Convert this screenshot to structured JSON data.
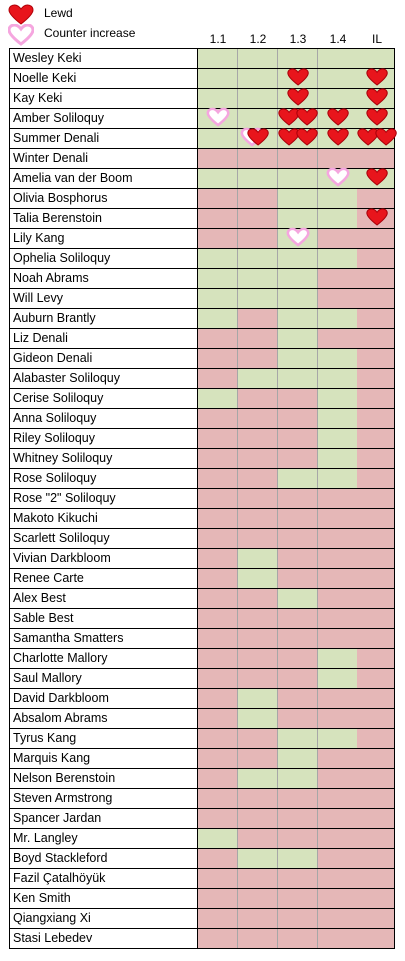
{
  "legend": {
    "lewd_label": "Lewd",
    "counter_label": "Counter increase",
    "lewd_color": "#e8151c",
    "counter_color": "#f5a6df"
  },
  "colors": {
    "available": "#d6e3bd",
    "unavailable": "#e5b7b7"
  },
  "chart_data": {
    "type": "table",
    "columns": [
      "1.1",
      "1.2",
      "1.3",
      "1.4",
      "IL"
    ],
    "cell_values": "G = green cell, R = red cell, per column",
    "rows": [
      {
        "name": "Wesley Keki",
        "cells": "GGGGG",
        "lewd": [],
        "counter": []
      },
      {
        "name": "Noelle Keki",
        "cells": "GGGGG",
        "lewd": [
          [
            2,
            1
          ],
          [
            4,
            1
          ]
        ],
        "counter": []
      },
      {
        "name": "Kay Keki",
        "cells": "GGGGG",
        "lewd": [
          [
            2,
            1
          ],
          [
            4,
            1
          ]
        ],
        "counter": []
      },
      {
        "name": "Amber Soliloquy",
        "cells": "GGGGG",
        "lewd": [
          [
            2,
            2
          ],
          [
            3,
            1
          ],
          [
            4,
            1
          ]
        ],
        "counter": [
          [
            0,
            1
          ]
        ]
      },
      {
        "name": "Summer Denali",
        "cells": "GGGGG",
        "lewd": [
          [
            1,
            1
          ],
          [
            2,
            2
          ],
          [
            3,
            1
          ],
          [
            4,
            2
          ]
        ],
        "counter": [
          [
            1,
            1
          ]
        ]
      },
      {
        "name": "Winter Denali",
        "cells": "RRRRR",
        "lewd": [],
        "counter": []
      },
      {
        "name": "Amelia van der Boom",
        "cells": "GGGGG",
        "lewd": [
          [
            4,
            1
          ]
        ],
        "counter": [
          [
            3,
            1
          ]
        ]
      },
      {
        "name": "Olivia Bosphorus",
        "cells": "RRGGR",
        "lewd": [],
        "counter": []
      },
      {
        "name": "Talia Berenstoin",
        "cells": "RRGGR",
        "lewd": [
          [
            4,
            1
          ]
        ],
        "counter": []
      },
      {
        "name": "Lily Kang",
        "cells": "RRGRR",
        "lewd": [],
        "counter": [
          [
            2,
            1
          ]
        ]
      },
      {
        "name": "Ophelia Soliloquy",
        "cells": "GGGGR",
        "lewd": [],
        "counter": []
      },
      {
        "name": "Noah Abrams",
        "cells": "GGGRR",
        "lewd": [],
        "counter": []
      },
      {
        "name": "Will Levy",
        "cells": "GGGRR",
        "lewd": [],
        "counter": []
      },
      {
        "name": "Auburn Brantly",
        "cells": "GRGGR",
        "lewd": [],
        "counter": []
      },
      {
        "name": "Liz Denali",
        "cells": "RRGRR",
        "lewd": [],
        "counter": []
      },
      {
        "name": "Gideon Denali",
        "cells": "RRGGR",
        "lewd": [],
        "counter": []
      },
      {
        "name": "Alabaster Soliloquy",
        "cells": "RGGGR",
        "lewd": [],
        "counter": []
      },
      {
        "name": "Cerise Soliloquy",
        "cells": "GRRGR",
        "lewd": [],
        "counter": []
      },
      {
        "name": "Anna Soliloquy",
        "cells": "RRRGR",
        "lewd": [],
        "counter": []
      },
      {
        "name": "Riley Soliloquy",
        "cells": "RRRGR",
        "lewd": [],
        "counter": []
      },
      {
        "name": "Whitney Soliloquy",
        "cells": "RRRGR",
        "lewd": [],
        "counter": []
      },
      {
        "name": "Rose Soliloquy",
        "cells": "RRGGR",
        "lewd": [],
        "counter": []
      },
      {
        "name": "Rose \"2\" Soliloquy",
        "cells": "RRRRR",
        "lewd": [],
        "counter": []
      },
      {
        "name": "Makoto Kikuchi",
        "cells": "RRRRR",
        "lewd": [],
        "counter": []
      },
      {
        "name": "Scarlett Soliloquy",
        "cells": "RRRRR",
        "lewd": [],
        "counter": []
      },
      {
        "name": "Vivian Darkbloom",
        "cells": "RGRRR",
        "lewd": [],
        "counter": []
      },
      {
        "name": "Renee Carte",
        "cells": "RGRRR",
        "lewd": [],
        "counter": []
      },
      {
        "name": "Alex Best",
        "cells": "RRGRR",
        "lewd": [],
        "counter": []
      },
      {
        "name": "Sable Best",
        "cells": "RRRRR",
        "lewd": [],
        "counter": []
      },
      {
        "name": "Samantha Smatters",
        "cells": "RRRRR",
        "lewd": [],
        "counter": []
      },
      {
        "name": "Charlotte Mallory",
        "cells": "RRRGR",
        "lewd": [],
        "counter": []
      },
      {
        "name": "Saul Mallory",
        "cells": "RRRGR",
        "lewd": [],
        "counter": []
      },
      {
        "name": "David Darkbloom",
        "cells": "RGRRR",
        "lewd": [],
        "counter": []
      },
      {
        "name": "Absalom Abrams",
        "cells": "RGRRR",
        "lewd": [],
        "counter": []
      },
      {
        "name": "Tyrus Kang",
        "cells": "RRGGR",
        "lewd": [],
        "counter": []
      },
      {
        "name": "Marquis Kang",
        "cells": "RRGRR",
        "lewd": [],
        "counter": []
      },
      {
        "name": "Nelson Berenstoin",
        "cells": "RGGRR",
        "lewd": [],
        "counter": []
      },
      {
        "name": "Steven Armstrong",
        "cells": "RRRRR",
        "lewd": [],
        "counter": []
      },
      {
        "name": "Spancer Jardan",
        "cells": "RRRRR",
        "lewd": [],
        "counter": []
      },
      {
        "name": "Mr. Langley",
        "cells": "GRRRR",
        "lewd": [],
        "counter": []
      },
      {
        "name": "Boyd Stackleford",
        "cells": "RGGRR",
        "lewd": [],
        "counter": []
      },
      {
        "name": "Fazil Çatalhöyük",
        "cells": "RRRRR",
        "lewd": [],
        "counter": []
      },
      {
        "name": "Ken Smith",
        "cells": "RRRRR",
        "lewd": [],
        "counter": []
      },
      {
        "name": "Qiangxiang Xi",
        "cells": "RRRRR",
        "lewd": [],
        "counter": []
      },
      {
        "name": "Stasi Lebedev",
        "cells": "RRRRR",
        "lewd": [],
        "counter": []
      }
    ]
  }
}
